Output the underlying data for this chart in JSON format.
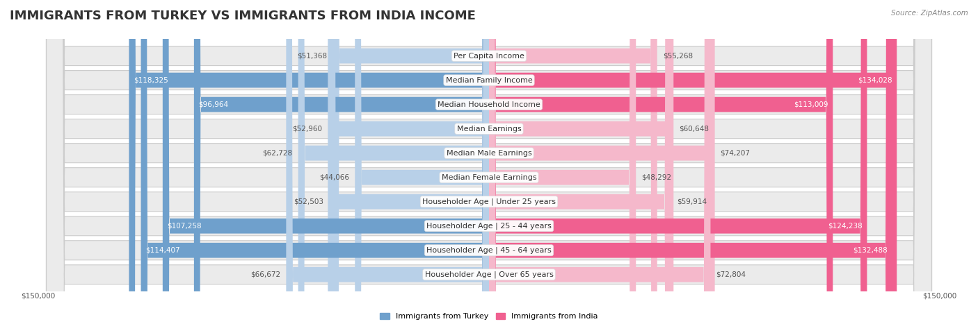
{
  "title": "IMMIGRANTS FROM TURKEY VS IMMIGRANTS FROM INDIA INCOME",
  "source": "Source: ZipAtlas.com",
  "categories": [
    "Per Capita Income",
    "Median Family Income",
    "Median Household Income",
    "Median Earnings",
    "Median Male Earnings",
    "Median Female Earnings",
    "Householder Age | Under 25 years",
    "Householder Age | 25 - 44 years",
    "Householder Age | 45 - 64 years",
    "Householder Age | Over 65 years"
  ],
  "turkey_values": [
    51368,
    118325,
    96964,
    52960,
    62728,
    44066,
    52503,
    107258,
    114407,
    66672
  ],
  "india_values": [
    55268,
    134028,
    113009,
    60648,
    74207,
    48292,
    59914,
    124238,
    132488,
    72804
  ],
  "turkey_color_light": "#b8d0e8",
  "turkey_color_dark": "#6fa0cc",
  "india_color_light": "#f5b8cb",
  "india_color_dark": "#f06090",
  "turkey_label": "Immigrants from Turkey",
  "india_label": "Immigrants from India",
  "max_value": 150000,
  "background_color": "#ffffff",
  "row_bg_color": "#e8e8e8",
  "title_fontsize": 13,
  "label_fontsize": 8,
  "value_fontsize": 7.5,
  "legend_fontsize": 8,
  "source_fontsize": 7.5,
  "turkey_text_threshold": 90000,
  "india_text_threshold": 90000
}
